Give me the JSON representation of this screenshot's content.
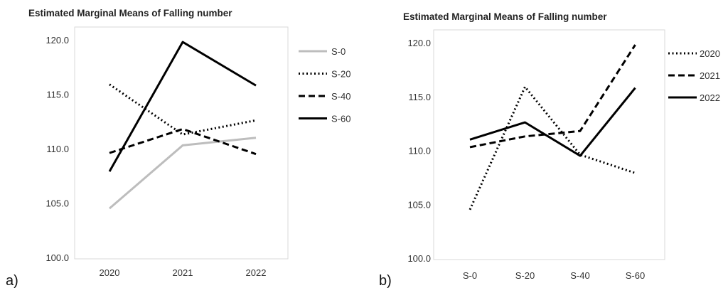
{
  "chart_data": [
    {
      "type": "line",
      "panel_label": "a)",
      "title": "Estimated Marginal Means of Falling number",
      "categories": [
        "2020",
        "2021",
        "2022"
      ],
      "series": [
        {
          "name": "S-0",
          "values": [
            104.5,
            110.3,
            111.0
          ],
          "color": "#bdbdbd",
          "dash": "solid"
        },
        {
          "name": "S-20",
          "values": [
            115.9,
            111.3,
            112.6
          ],
          "color": "#000000",
          "dash": "dotted"
        },
        {
          "name": "S-40",
          "values": [
            109.6,
            111.8,
            109.5
          ],
          "color": "#000000",
          "dash": "dashed"
        },
        {
          "name": "S-60",
          "values": [
            107.9,
            119.8,
            115.8
          ],
          "color": "#000000",
          "dash": "solid"
        }
      ],
      "ylim": [
        100.0,
        120.0
      ],
      "yticks": [
        "100.0",
        "105.0",
        "110.0",
        "115.0",
        "120.0"
      ],
      "grid": false,
      "legend": "right"
    },
    {
      "type": "line",
      "panel_label": "b)",
      "title": "Estimated Marginal Means of Falling number",
      "categories": [
        "S-0",
        "S-20",
        "S-40",
        "S-60"
      ],
      "series": [
        {
          "name": "2020",
          "values": [
            104.5,
            115.9,
            109.6,
            107.9
          ],
          "color": "#000000",
          "dash": "dotted"
        },
        {
          "name": "2021",
          "values": [
            110.3,
            111.3,
            111.8,
            119.8
          ],
          "color": "#000000",
          "dash": "dashed"
        },
        {
          "name": "2022",
          "values": [
            111.0,
            112.6,
            109.5,
            115.8
          ],
          "color": "#000000",
          "dash": "solid"
        }
      ],
      "ylim": [
        100.0,
        120.0
      ],
      "yticks": [
        "100.0",
        "105.0",
        "110.0",
        "115.0",
        "120.0"
      ],
      "grid": false,
      "legend": "right"
    }
  ]
}
